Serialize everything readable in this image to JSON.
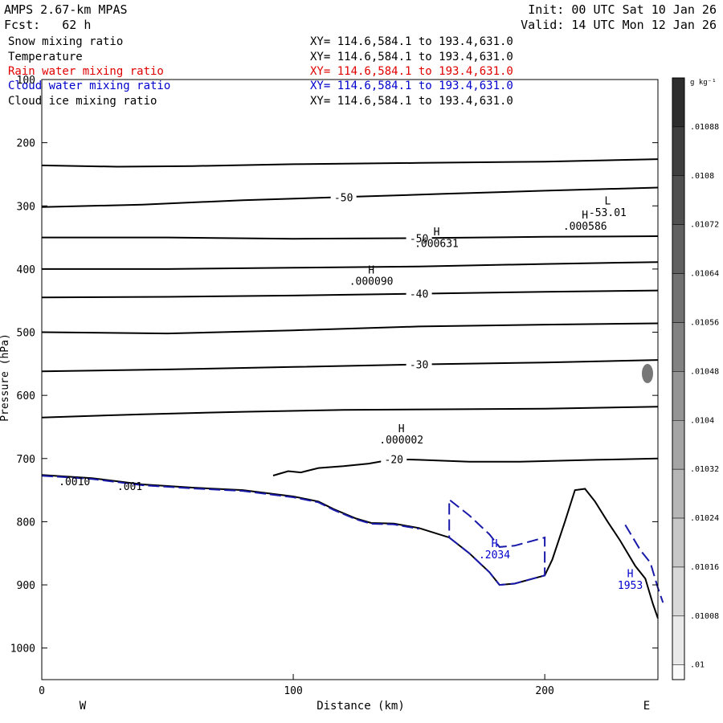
{
  "header": {
    "title": "AMPS 2.67-km MPAS",
    "forecast": "Fcst:   62 h",
    "init": "Init: 00 UTC Sat 10 Jan 26",
    "valid": "Valid: 14 UTC Mon 12 Jan 26"
  },
  "fields": [
    {
      "name": "Snow mixing ratio",
      "xy": "XY= 114.6,584.1 to 193.4,631.0",
      "color": "#000000"
    },
    {
      "name": "Temperature",
      "xy": "XY= 114.6,584.1 to 193.4,631.0",
      "color": "#000000"
    },
    {
      "name": "Rain water mixing ratio",
      "xy": "XY= 114.6,584.1 to 193.4,631.0",
      "color": "#e00000"
    },
    {
      "name": "Cloud water mixing ratio",
      "xy": "XY= 114.6,584.1 to 193.4,631.0",
      "color": "#0000cc"
    },
    {
      "name": "Cloud ice mixing ratio",
      "xy": "XY= 114.6,584.1 to 193.4,631.0",
      "color": "#000000"
    }
  ],
  "chart_data": {
    "type": "cross-section contour",
    "xlabel": "Distance (km)",
    "ylabel": "Pressure (hPa)",
    "xlim": [
      0,
      245
    ],
    "ylim": [
      1050,
      100
    ],
    "x_ticks": [
      0,
      100,
      200
    ],
    "y_ticks": [
      100,
      200,
      300,
      400,
      500,
      600,
      700,
      800,
      900,
      1000
    ],
    "left_end_label": "W",
    "right_end_label": "E",
    "temperature_contours": [
      {
        "level": "",
        "points": [
          [
            0,
            236
          ],
          [
            30,
            238
          ],
          [
            60,
            237
          ],
          [
            100,
            234
          ],
          [
            150,
            232
          ],
          [
            200,
            230
          ],
          [
            245,
            226
          ]
        ]
      },
      {
        "level": "-50",
        "points": [
          [
            0,
            302
          ],
          [
            40,
            298
          ],
          [
            80,
            291
          ],
          [
            120,
            286
          ],
          [
            160,
            281
          ],
          [
            200,
            276
          ],
          [
            245,
            271
          ]
        ]
      },
      {
        "level": "-50",
        "points": [
          [
            0,
            350
          ],
          [
            50,
            350
          ],
          [
            100,
            352
          ],
          [
            150,
            351
          ],
          [
            200,
            349
          ],
          [
            245,
            348
          ]
        ]
      },
      {
        "level": "",
        "points": [
          [
            0,
            400
          ],
          [
            50,
            400
          ],
          [
            100,
            398
          ],
          [
            150,
            396
          ],
          [
            200,
            392
          ],
          [
            245,
            389
          ]
        ]
      },
      {
        "level": "-40",
        "points": [
          [
            0,
            445
          ],
          [
            50,
            444
          ],
          [
            100,
            442
          ],
          [
            150,
            439
          ],
          [
            200,
            436
          ],
          [
            245,
            434
          ]
        ]
      },
      {
        "level": "",
        "points": [
          [
            0,
            500
          ],
          [
            50,
            502
          ],
          [
            100,
            497
          ],
          [
            150,
            491
          ],
          [
            200,
            488
          ],
          [
            245,
            486
          ]
        ]
      },
      {
        "level": "-30",
        "points": [
          [
            0,
            562
          ],
          [
            50,
            559
          ],
          [
            100,
            555
          ],
          [
            150,
            551
          ],
          [
            200,
            548
          ],
          [
            245,
            544
          ]
        ]
      },
      {
        "level": "",
        "points": [
          [
            0,
            635
          ],
          [
            40,
            630
          ],
          [
            80,
            626
          ],
          [
            120,
            623
          ],
          [
            160,
            622
          ],
          [
            200,
            621
          ],
          [
            245,
            618
          ]
        ]
      },
      {
        "level": "-20",
        "points": [
          [
            92,
            727
          ],
          [
            98,
            720
          ],
          [
            103,
            722
          ],
          [
            110,
            715
          ],
          [
            120,
            712
          ],
          [
            130,
            708
          ],
          [
            140,
            701
          ],
          [
            150,
            702
          ],
          [
            170,
            705
          ],
          [
            190,
            705
          ],
          [
            220,
            702
          ],
          [
            245,
            700
          ]
        ]
      }
    ],
    "terrain": [
      [
        0,
        726
      ],
      [
        20,
        731
      ],
      [
        40,
        741
      ],
      [
        60,
        746
      ],
      [
        80,
        750
      ],
      [
        100,
        760
      ],
      [
        110,
        768
      ],
      [
        116,
        780
      ],
      [
        125,
        795
      ],
      [
        131,
        802
      ],
      [
        140,
        803
      ],
      [
        150,
        810
      ],
      [
        162,
        825
      ],
      [
        170,
        850
      ],
      [
        178,
        880
      ],
      [
        182,
        900
      ],
      [
        188,
        898
      ],
      [
        200,
        885
      ],
      [
        203,
        860
      ],
      [
        208,
        800
      ],
      [
        212,
        750
      ],
      [
        216,
        748
      ],
      [
        220,
        768
      ],
      [
        225,
        800
      ],
      [
        230,
        830
      ],
      [
        236,
        870
      ],
      [
        240,
        890
      ],
      [
        243,
        930
      ],
      [
        245,
        953
      ]
    ],
    "labels": [
      {
        "x": -90,
        "y": -60,
        "text": ""
      },
      {
        "x": 157,
        "y": 347,
        "text": "H",
        "color": "#000000"
      },
      {
        "x": 157,
        "y": 365,
        "text": ".000631",
        "color": "#000000"
      },
      {
        "x": 216,
        "y": 320,
        "text": "H",
        "color": "#000000"
      },
      {
        "x": 216,
        "y": 338,
        "text": ".000586",
        "color": "#000000"
      },
      {
        "x": 225,
        "y": 298,
        "text": "L",
        "color": "#000000"
      },
      {
        "x": 225,
        "y": 316,
        "text": "-53.01",
        "color": "#000000"
      },
      {
        "x": 131,
        "y": 407,
        "text": "H",
        "color": "#000000"
      },
      {
        "x": 131,
        "y": 425,
        "text": ".000090",
        "color": "#000000"
      },
      {
        "x": 143,
        "y": 658,
        "text": "H",
        "color": "#000000"
      },
      {
        "x": 143,
        "y": 676,
        "text": ".000002",
        "color": "#000000"
      },
      {
        "x": 13,
        "y": 742,
        "text": ".0010",
        "color": "#000000"
      },
      {
        "x": 35,
        "y": 750,
        "text": ".001",
        "color": "#000000"
      },
      {
        "x": 180,
        "y": 840,
        "text": "H",
        "color": "#0000cc"
      },
      {
        "x": 180,
        "y": 858,
        "text": ".2034",
        "color": "#0000cc"
      },
      {
        "x": 234,
        "y": 888,
        "text": "H",
        "color": "#0000cc"
      },
      {
        "x": 234,
        "y": 906,
        "text": "1953",
        "color": "#0000cc"
      }
    ],
    "colorbar": {
      "unit": "g kg⁻¹",
      "ticks": [
        ".01088",
        ".0108",
        ".01072",
        ".01064",
        ".01056",
        ".01048",
        ".0104",
        ".01032",
        ".01024",
        ".01016",
        ".01008",
        ".01"
      ]
    }
  }
}
